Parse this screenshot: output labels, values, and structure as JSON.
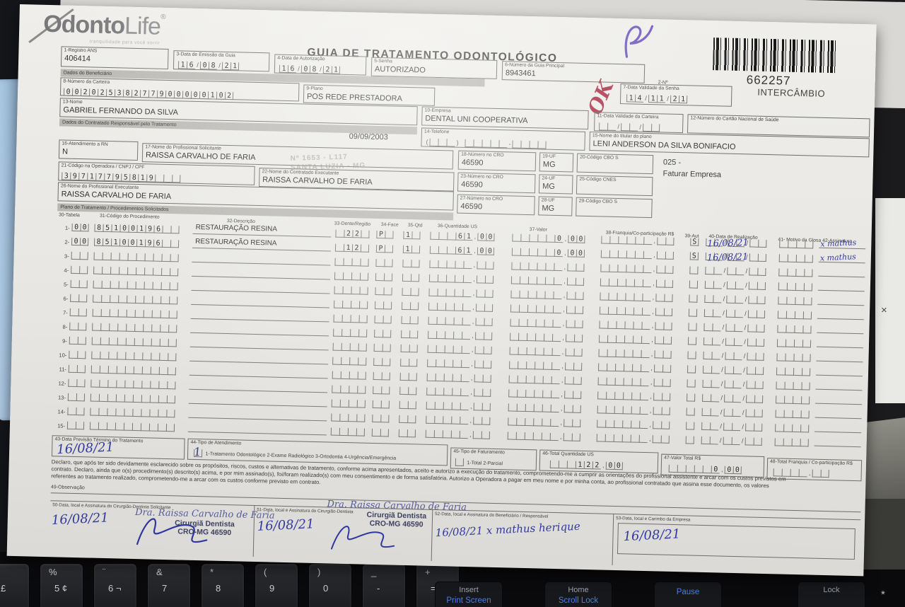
{
  "scene": {
    "monitor": {
      "close_glyph": "×"
    },
    "keyboard": {
      "main_keys": [
        {
          "top": "$",
          "bot": "£"
        },
        {
          "top": "%",
          "bot": "5 ¢"
        },
        {
          "top": "¨",
          "bot": "6 ¬"
        },
        {
          "top": "&",
          "bot": "7"
        },
        {
          "top": "*",
          "bot": "8"
        },
        {
          "top": "(",
          "bot": "9"
        },
        {
          "top": ")",
          "bot": "0"
        },
        {
          "top": "_",
          "bot": "-"
        },
        {
          "top": "+",
          "bot": "= §"
        }
      ],
      "fn_keys": [
        {
          "top": "Insert",
          "bot": "Print Screen"
        },
        {
          "top": "Home",
          "bot": "Scroll Lock"
        },
        {
          "top": "",
          "bot": "Pause"
        },
        {
          "top": "Lock",
          "bot": ""
        }
      ],
      "star_key": "*"
    }
  },
  "form": {
    "logo": {
      "word1": "Odonto",
      "word2": "Life",
      "reg": "®",
      "tagline": "tranquilidade para você sorrir"
    },
    "title": "GUIA DE TRATAMENTO ODONTOLÓGICO",
    "n2_label": "2-Nº",
    "barcode": {
      "number": "662257",
      "caption": "INTERCÂMBIO"
    },
    "watermark": {
      "line1": "Nº 1653 - L117",
      "line2": "SANTA LUZIA - MG"
    },
    "red_note": "OK",
    "printed_date": "09/09/2003",
    "note_025": {
      "line1": "025 -",
      "line2": "Faturar Empresa"
    },
    "sections": {
      "beneficiario": "Dados do Beneficiário",
      "contratado": "Dados do Contratado Responsável pelo Tratamento",
      "plano": "Plano de Tratamento / Procedimentos Solicitados"
    },
    "fields": {
      "f1": {
        "label": "1-Registro ANS",
        "value": "406414"
      },
      "f3": {
        "label": "3-Data de Emissão da Guia",
        "value": "16/08/21"
      },
      "f4": {
        "label": "4-Data de Autorização",
        "value": "16/08/21"
      },
      "f5": {
        "label": "5-Senha",
        "value": "AUTORIZADO"
      },
      "f6": {
        "label": "6-Número da Guia Principal",
        "value": "8943461"
      },
      "f7": {
        "label": "7-Data Validade da Senha",
        "value": "14/11/21"
      },
      "f8": {
        "label": "8-Número da Carteira",
        "value": "00202538277900000102"
      },
      "f9": {
        "label": "9-Plano",
        "value": "POS REDE PRESTADORA"
      },
      "f10": {
        "label": "10-Empresa",
        "value": "DENTAL UNI COOPERATIVA"
      },
      "f11": {
        "label": "11-Data Validade da Carteira",
        "value": ""
      },
      "f12": {
        "label": "12-Número do Cartão Nacional de Saúde",
        "value": ""
      },
      "f13": {
        "label": "13-Nome",
        "value": "GABRIEL FERNANDO DA SILVA"
      },
      "f14": {
        "label": "14-Telefone",
        "value": ""
      },
      "f15": {
        "label": "15-Nome do titular do plano",
        "value": "LENI ANDERSON DA SILVA BONIFACIO"
      },
      "f16": {
        "label": "16-Atendimento a RN",
        "value": "N"
      },
      "f17": {
        "label": "17-Nome do Profissional Solicitante",
        "value": "RAISSA CARVALHO DE FARIA"
      },
      "f18": {
        "label": "18-Número no CRO",
        "value": "46590"
      },
      "f19": {
        "label": "19-UF",
        "value": "MG"
      },
      "f20": {
        "label": "20-Código CBO S",
        "value": ""
      },
      "f21": {
        "label": "21-Código na Operadora / CNPJ / CPF",
        "value": "39717795819"
      },
      "f22": {
        "label": "22-Nome do Contratado Executante",
        "value": "RAISSA CARVALHO DE FARIA"
      },
      "f23": {
        "label": "23-Número no CRO",
        "value": "46590"
      },
      "f24": {
        "label": "24-UF",
        "value": "MG"
      },
      "f25": {
        "label": "25-Código CNES",
        "value": ""
      },
      "f26": {
        "label": "26-Nome do Profissional Executante",
        "value": "RAISSA CARVALHO DE FARIA"
      },
      "f27": {
        "label": "27-Número no CRO",
        "value": "46590"
      },
      "f28": {
        "label": "28-UF",
        "value": "MG"
      },
      "f29": {
        "label": "29-Código CBO S",
        "value": ""
      },
      "f43": {
        "label": "43-Data Previsão Término do Tratamento",
        "hand": "16/08/21"
      },
      "f44": {
        "label": "44-Tipo de Atendimento",
        "hand": "1",
        "legend": "1-Tratamento Odontológico  2-Exame Radiológico  3-Ortodontia  4-Urgência/Emergência"
      },
      "f45": {
        "label": "45-Tipo de Faturamento",
        "legend": "1-Total  2-Parcial",
        "value": ""
      },
      "f46": {
        "label": "46-Total Quantidade US",
        "value": "   122,00"
      },
      "f47": {
        "label": "47-Valor Total R$",
        "value": "     0,00"
      },
      "f48": {
        "label": "48-Total Franquia / Co-participação R$",
        "value": ""
      },
      "f49": {
        "label": "49-Observação"
      }
    },
    "procedures": {
      "headers": {
        "tabela": "30-Tabela",
        "codigo": "31-Código do Procedimento",
        "descricao": "32-Descrição",
        "dente": "33-Dente/Região",
        "face": "34-Face",
        "qtd": "35-Qtd",
        "us": "36-Quantidade US",
        "valor": "37-Valor",
        "franquia": "38-Franquia/Co-participação R$",
        "aut": "39-Aut",
        "data": "40-Data de Realização",
        "glosa": "41- Motivo da Glosa 42-Assinatura"
      },
      "rows": [
        {
          "n": "1-",
          "tabela": "00",
          "codigo": "85100196",
          "descricao": "RESTAURAÇÃO RESINA",
          "dente": " 22",
          "face": "P",
          "qtd": "1",
          "us": "   61,00",
          "valor": "     0,00",
          "franquia": "",
          "aut": "S",
          "data": "16/08/21",
          "assinatura": "x mathus"
        },
        {
          "n": "2-",
          "tabela": "00",
          "codigo": "85100196",
          "descricao": "RESTAURAÇÃO RESINA",
          "dente": " 12",
          "face": "P",
          "qtd": "1",
          "us": "   61,00",
          "valor": "     0,00",
          "franquia": "",
          "aut": "S",
          "data": "16/08/21",
          "assinatura": "x mathus"
        },
        {
          "n": "3-",
          "tabela": "",
          "codigo": "",
          "descricao": "",
          "dente": "",
          "face": "",
          "qtd": "",
          "us": "",
          "valor": "",
          "franquia": "",
          "aut": "",
          "data": "",
          "assinatura": ""
        },
        {
          "n": "4-",
          "tabela": "",
          "codigo": "",
          "descricao": "",
          "dente": "",
          "face": "",
          "qtd": "",
          "us": "",
          "valor": "",
          "franquia": "",
          "aut": "",
          "data": "",
          "assinatura": ""
        },
        {
          "n": "5-",
          "tabela": "",
          "codigo": "",
          "descricao": "",
          "dente": "",
          "face": "",
          "qtd": "",
          "us": "",
          "valor": "",
          "franquia": "",
          "aut": "",
          "data": "",
          "assinatura": ""
        },
        {
          "n": "6-",
          "tabela": "",
          "codigo": "",
          "descricao": "",
          "dente": "",
          "face": "",
          "qtd": "",
          "us": "",
          "valor": "",
          "franquia": "",
          "aut": "",
          "data": "",
          "assinatura": ""
        },
        {
          "n": "7-",
          "tabela": "",
          "codigo": "",
          "descricao": "",
          "dente": "",
          "face": "",
          "qtd": "",
          "us": "",
          "valor": "",
          "franquia": "",
          "aut": "",
          "data": "",
          "assinatura": ""
        },
        {
          "n": "8-",
          "tabela": "",
          "codigo": "",
          "descricao": "",
          "dente": "",
          "face": "",
          "qtd": "",
          "us": "",
          "valor": "",
          "franquia": "",
          "aut": "",
          "data": "",
          "assinatura": ""
        },
        {
          "n": "9-",
          "tabela": "",
          "codigo": "",
          "descricao": "",
          "dente": "",
          "face": "",
          "qtd": "",
          "us": "",
          "valor": "",
          "franquia": "",
          "aut": "",
          "data": "",
          "assinatura": ""
        },
        {
          "n": "10-",
          "tabela": "",
          "codigo": "",
          "descricao": "",
          "dente": "",
          "face": "",
          "qtd": "",
          "us": "",
          "valor": "",
          "franquia": "",
          "aut": "",
          "data": "",
          "assinatura": ""
        },
        {
          "n": "11-",
          "tabela": "",
          "codigo": "",
          "descricao": "",
          "dente": "",
          "face": "",
          "qtd": "",
          "us": "",
          "valor": "",
          "franquia": "",
          "aut": "",
          "data": "",
          "assinatura": ""
        },
        {
          "n": "12-",
          "tabela": "",
          "codigo": "",
          "descricao": "",
          "dente": "",
          "face": "",
          "qtd": "",
          "us": "",
          "valor": "",
          "franquia": "",
          "aut": "",
          "data": "",
          "assinatura": ""
        },
        {
          "n": "13-",
          "tabela": "",
          "codigo": "",
          "descricao": "",
          "dente": "",
          "face": "",
          "qtd": "",
          "us": "",
          "valor": "",
          "franquia": "",
          "aut": "",
          "data": "",
          "assinatura": ""
        },
        {
          "n": "14-",
          "tabela": "",
          "codigo": "",
          "descricao": "",
          "dente": "",
          "face": "",
          "qtd": "",
          "us": "",
          "valor": "",
          "franquia": "",
          "aut": "",
          "data": "",
          "assinatura": ""
        },
        {
          "n": "15-",
          "tabela": "",
          "codigo": "",
          "descricao": "",
          "dente": "",
          "face": "",
          "qtd": "",
          "us": "",
          "valor": "",
          "franquia": "",
          "aut": "",
          "data": "",
          "assinatura": ""
        }
      ]
    },
    "declaration": {
      "line1": "Declaro, que após ter sido devidamente esclarecido sobre os propósitos, riscos, custos e alternativas de tratamento, conforme acima apresentados, aceito e autorizo a execução do tratamento, comprometendo-me a cumprir as orientações do profissional assistente e arcar com os custos previstos em",
      "line2": "contrato. Declaro, ainda que o(s) procedimento(s) descrito(s) acima, e por mim assinado(s), foi/foram realizado(s) com meu consentimento e de forma satisfatória. Autorizo a Operadora a pagar em meu nome e por minha conta, ao profissional contratado que assina esse documento, os valores",
      "line3": "referentes ao tratamento realizado, comprometendo-me a arcar com os custos conforme previsto em contrato."
    },
    "signatures": {
      "s50": {
        "label": "50-Data, local e Assinatura do Cirurgião-Dentista Solicitante",
        "hand_date": "16/08/21",
        "stamp_name": "Dra. Raissa Carvalho de Faria",
        "stamp_role": "Cirurgiã Dentista",
        "stamp_cro": "CRO-MG 46590"
      },
      "s51": {
        "label": "51-Data, local e Assinatura do Cirurgião-Dentista",
        "hand_date": "16/08/21",
        "stamp_name": "Dra. Raissa Carvalho de Faria",
        "stamp_role": "Cirurgiã Dentista",
        "stamp_cro": "CRO-MG 46590"
      },
      "s52": {
        "label": "52-Data, local e Assinatura do Beneficiário / Responsável",
        "hand": "16/08/21  x mathus herique"
      },
      "s53": {
        "label": "53-Data, local e Carimbo da Empresa",
        "hand": "16/08/21"
      }
    }
  }
}
